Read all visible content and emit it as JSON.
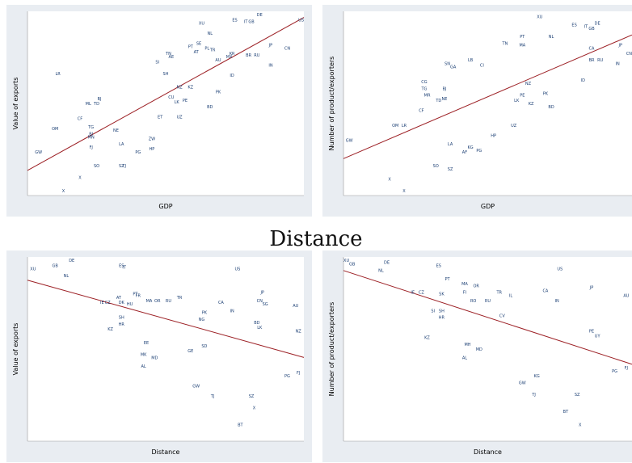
{
  "section_title": "Distance",
  "colors": {
    "points": "#1a3e73",
    "fit_line": "#9c1f24",
    "panel_bg": "#e9edf2",
    "plot_bg": "#ffffff"
  },
  "chart_data": [
    {
      "type": "scatter",
      "xlabel": "GDP",
      "ylabel": "Value of exports",
      "fit_line": true,
      "points": [
        {
          "label": "US",
          "x": 0.99,
          "y": 0.96
        },
        {
          "label": "CN",
          "x": 0.94,
          "y": 0.79
        },
        {
          "label": "JP",
          "x": 0.88,
          "y": 0.81
        },
        {
          "label": "DE",
          "x": 0.84,
          "y": 0.99
        },
        {
          "label": "ES",
          "x": 0.75,
          "y": 0.96
        },
        {
          "label": "IT",
          "x": 0.79,
          "y": 0.95
        },
        {
          "label": "GB",
          "x": 0.81,
          "y": 0.95
        },
        {
          "label": "XU",
          "x": 0.63,
          "y": 0.94
        },
        {
          "label": "NL",
          "x": 0.66,
          "y": 0.88
        },
        {
          "label": "BR",
          "x": 0.8,
          "y": 0.75
        },
        {
          "label": "RU",
          "x": 0.83,
          "y": 0.75
        },
        {
          "label": "MX",
          "x": 0.73,
          "y": 0.74
        },
        {
          "label": "KR",
          "x": 0.74,
          "y": 0.76
        },
        {
          "label": "IN",
          "x": 0.88,
          "y": 0.69
        },
        {
          "label": "ID",
          "x": 0.74,
          "y": 0.63
        },
        {
          "label": "TR",
          "x": 0.67,
          "y": 0.78
        },
        {
          "label": "AU",
          "x": 0.69,
          "y": 0.72
        },
        {
          "label": "PL",
          "x": 0.65,
          "y": 0.79
        },
        {
          "label": "AT",
          "x": 0.61,
          "y": 0.77
        },
        {
          "label": "PT",
          "x": 0.59,
          "y": 0.8
        },
        {
          "label": "SE",
          "x": 0.62,
          "y": 0.82
        },
        {
          "label": "TN",
          "x": 0.51,
          "y": 0.76
        },
        {
          "label": "AE",
          "x": 0.52,
          "y": 0.74
        },
        {
          "label": "SI",
          "x": 0.47,
          "y": 0.71
        },
        {
          "label": "LR",
          "x": 0.11,
          "y": 0.64
        },
        {
          "label": "SH",
          "x": 0.5,
          "y": 0.64
        },
        {
          "label": "NZ",
          "x": 0.55,
          "y": 0.56
        },
        {
          "label": "KZ",
          "x": 0.59,
          "y": 0.56
        },
        {
          "label": "PK",
          "x": 0.69,
          "y": 0.53
        },
        {
          "label": "PE",
          "x": 0.57,
          "y": 0.48
        },
        {
          "label": "LK",
          "x": 0.54,
          "y": 0.47
        },
        {
          "label": "BD",
          "x": 0.66,
          "y": 0.44
        },
        {
          "label": "UZ",
          "x": 0.55,
          "y": 0.38
        },
        {
          "label": "CU",
          "x": 0.52,
          "y": 0.5
        },
        {
          "label": "ET",
          "x": 0.48,
          "y": 0.38
        },
        {
          "label": "BJ",
          "x": 0.26,
          "y": 0.49
        },
        {
          "label": "TD",
          "x": 0.25,
          "y": 0.46
        },
        {
          "label": "ML",
          "x": 0.22,
          "y": 0.46
        },
        {
          "label": "CF",
          "x": 0.19,
          "y": 0.37
        },
        {
          "label": "OM",
          "x": 0.1,
          "y": 0.31
        },
        {
          "label": "TG",
          "x": 0.23,
          "y": 0.32
        },
        {
          "label": "BI",
          "x": 0.23,
          "y": 0.28
        },
        {
          "label": "MN",
          "x": 0.23,
          "y": 0.26
        },
        {
          "label": "FJ",
          "x": 0.23,
          "y": 0.2
        },
        {
          "label": "GW",
          "x": 0.04,
          "y": 0.17
        },
        {
          "label": "LA",
          "x": 0.34,
          "y": 0.22
        },
        {
          "label": "NE",
          "x": 0.32,
          "y": 0.3
        },
        {
          "label": "ZW",
          "x": 0.45,
          "y": 0.25
        },
        {
          "label": "HP",
          "x": 0.45,
          "y": 0.19
        },
        {
          "label": "PG",
          "x": 0.4,
          "y": 0.17
        },
        {
          "label": "SO",
          "x": 0.25,
          "y": 0.09
        },
        {
          "label": "SZ",
          "x": 0.34,
          "y": 0.09
        },
        {
          "label": "TJ",
          "x": 0.35,
          "y": 0.09
        },
        {
          "label": "X",
          "x": 0.19,
          "y": 0.02
        },
        {
          "label": "X",
          "x": 0.13,
          "y": -0.06
        }
      ]
    },
    {
      "type": "scatter",
      "xlabel": "GDP",
      "ylabel": "Number of product/exporters",
      "fit_line": true,
      "points": [
        {
          "label": "XU",
          "x": 0.68,
          "y": 0.98
        },
        {
          "label": "ES",
          "x": 0.8,
          "y": 0.93
        },
        {
          "label": "IT",
          "x": 0.84,
          "y": 0.92
        },
        {
          "label": "GB",
          "x": 0.86,
          "y": 0.91
        },
        {
          "label": "DE",
          "x": 0.88,
          "y": 0.94
        },
        {
          "label": "NL",
          "x": 0.72,
          "y": 0.86
        },
        {
          "label": "PT",
          "x": 0.62,
          "y": 0.86
        },
        {
          "label": "TN",
          "x": 0.56,
          "y": 0.82
        },
        {
          "label": "MA",
          "x": 0.62,
          "y": 0.81
        },
        {
          "label": "CA",
          "x": 0.86,
          "y": 0.79
        },
        {
          "label": "JP",
          "x": 0.96,
          "y": 0.81
        },
        {
          "label": "CN",
          "x": 0.99,
          "y": 0.76
        },
        {
          "label": "BR",
          "x": 0.86,
          "y": 0.72
        },
        {
          "label": "RU",
          "x": 0.89,
          "y": 0.72
        },
        {
          "label": "IN",
          "x": 0.95,
          "y": 0.7
        },
        {
          "label": "ID",
          "x": 0.83,
          "y": 0.6
        },
        {
          "label": "LB",
          "x": 0.44,
          "y": 0.72
        },
        {
          "label": "CI",
          "x": 0.48,
          "y": 0.69
        },
        {
          "label": "SN",
          "x": 0.36,
          "y": 0.7
        },
        {
          "label": "GA",
          "x": 0.38,
          "y": 0.68
        },
        {
          "label": "CG",
          "x": 0.28,
          "y": 0.59
        },
        {
          "label": "TG",
          "x": 0.28,
          "y": 0.55
        },
        {
          "label": "MR",
          "x": 0.29,
          "y": 0.51
        },
        {
          "label": "BJ",
          "x": 0.35,
          "y": 0.55
        },
        {
          "label": "TD",
          "x": 0.33,
          "y": 0.48
        },
        {
          "label": "NE",
          "x": 0.35,
          "y": 0.49
        },
        {
          "label": "CF",
          "x": 0.27,
          "y": 0.42
        },
        {
          "label": "OM",
          "x": 0.18,
          "y": 0.33
        },
        {
          "label": "LR",
          "x": 0.21,
          "y": 0.33
        },
        {
          "label": "GW",
          "x": 0.02,
          "y": 0.24
        },
        {
          "label": "NZ",
          "x": 0.64,
          "y": 0.58
        },
        {
          "label": "PE",
          "x": 0.62,
          "y": 0.51
        },
        {
          "label": "LK",
          "x": 0.6,
          "y": 0.48
        },
        {
          "label": "PK",
          "x": 0.7,
          "y": 0.52
        },
        {
          "label": "BD",
          "x": 0.72,
          "y": 0.44
        },
        {
          "label": "KZ",
          "x": 0.65,
          "y": 0.46
        },
        {
          "label": "UZ",
          "x": 0.59,
          "y": 0.33
        },
        {
          "label": "HP",
          "x": 0.52,
          "y": 0.27
        },
        {
          "label": "KG",
          "x": 0.44,
          "y": 0.2
        },
        {
          "label": "PG",
          "x": 0.47,
          "y": 0.18
        },
        {
          "label": "AF",
          "x": 0.42,
          "y": 0.17
        },
        {
          "label": "LA",
          "x": 0.37,
          "y": 0.22
        },
        {
          "label": "SO",
          "x": 0.32,
          "y": 0.09
        },
        {
          "label": "SZ",
          "x": 0.37,
          "y": 0.07
        },
        {
          "label": "X",
          "x": 0.16,
          "y": 0.01
        },
        {
          "label": "X",
          "x": 0.21,
          "y": -0.06
        }
      ]
    },
    {
      "type": "scatter",
      "xlabel": "Distance",
      "ylabel": "Value of exports",
      "fit_line": true,
      "points": [
        {
          "label": "DE",
          "x": 0.16,
          "y": 0.99
        },
        {
          "label": "GB",
          "x": 0.1,
          "y": 0.96
        },
        {
          "label": "XU",
          "x": 0.02,
          "y": 0.94
        },
        {
          "label": "ES",
          "x": 0.34,
          "y": 0.96
        },
        {
          "label": "IT",
          "x": 0.35,
          "y": 0.95
        },
        {
          "label": "NL",
          "x": 0.14,
          "y": 0.9
        },
        {
          "label": "US",
          "x": 0.76,
          "y": 0.94
        },
        {
          "label": "PT",
          "x": 0.39,
          "y": 0.79
        },
        {
          "label": "FR",
          "x": 0.4,
          "y": 0.78
        },
        {
          "label": "MA",
          "x": 0.44,
          "y": 0.75
        },
        {
          "label": "OR",
          "x": 0.47,
          "y": 0.75
        },
        {
          "label": "RU",
          "x": 0.51,
          "y": 0.75
        },
        {
          "label": "TR",
          "x": 0.55,
          "y": 0.77
        },
        {
          "label": "IE",
          "x": 0.27,
          "y": 0.74
        },
        {
          "label": "CZ",
          "x": 0.29,
          "y": 0.74
        },
        {
          "label": "AT",
          "x": 0.33,
          "y": 0.77
        },
        {
          "label": "DK",
          "x": 0.34,
          "y": 0.74
        },
        {
          "label": "HU",
          "x": 0.37,
          "y": 0.73
        },
        {
          "label": "SH",
          "x": 0.34,
          "y": 0.65
        },
        {
          "label": "HR",
          "x": 0.34,
          "y": 0.61
        },
        {
          "label": "KZ",
          "x": 0.3,
          "y": 0.58
        },
        {
          "label": "CA",
          "x": 0.7,
          "y": 0.74
        },
        {
          "label": "AU",
          "x": 0.97,
          "y": 0.72
        },
        {
          "label": "NZ",
          "x": 0.98,
          "y": 0.57
        },
        {
          "label": "IN",
          "x": 0.74,
          "y": 0.69
        },
        {
          "label": "PK",
          "x": 0.64,
          "y": 0.68
        },
        {
          "label": "BD",
          "x": 0.83,
          "y": 0.62
        },
        {
          "label": "LK",
          "x": 0.84,
          "y": 0.59
        },
        {
          "label": "CN",
          "x": 0.84,
          "y": 0.75
        },
        {
          "label": "JP",
          "x": 0.85,
          "y": 0.8
        },
        {
          "label": "SG",
          "x": 0.86,
          "y": 0.73
        },
        {
          "label": "NG",
          "x": 0.63,
          "y": 0.64
        },
        {
          "label": "GE",
          "x": 0.59,
          "y": 0.45
        },
        {
          "label": "EE",
          "x": 0.43,
          "y": 0.5
        },
        {
          "label": "MK",
          "x": 0.42,
          "y": 0.43
        },
        {
          "label": "AL",
          "x": 0.42,
          "y": 0.36
        },
        {
          "label": "MD",
          "x": 0.46,
          "y": 0.41
        },
        {
          "label": "SD",
          "x": 0.64,
          "y": 0.48
        },
        {
          "label": "GW",
          "x": 0.61,
          "y": 0.24
        },
        {
          "label": "TJ",
          "x": 0.67,
          "y": 0.18
        },
        {
          "label": "SZ",
          "x": 0.81,
          "y": 0.18
        },
        {
          "label": "PG",
          "x": 0.94,
          "y": 0.3
        },
        {
          "label": "FJ",
          "x": 0.98,
          "y": 0.32
        },
        {
          "label": "X",
          "x": 0.82,
          "y": 0.11
        },
        {
          "label": "BT",
          "x": 0.77,
          "y": 0.01
        }
      ]
    },
    {
      "type": "scatter",
      "xlabel": "Distance",
      "ylabel": "Number of product/exporters",
      "fit_line": true,
      "points": [
        {
          "label": "XU",
          "x": 0.01,
          "y": 0.99
        },
        {
          "label": "GB",
          "x": 0.03,
          "y": 0.97
        },
        {
          "label": "DE",
          "x": 0.15,
          "y": 0.98
        },
        {
          "label": "ES",
          "x": 0.33,
          "y": 0.96
        },
        {
          "label": "NL",
          "x": 0.13,
          "y": 0.93
        },
        {
          "label": "US",
          "x": 0.75,
          "y": 0.94
        },
        {
          "label": "PT",
          "x": 0.36,
          "y": 0.88
        },
        {
          "label": "MA",
          "x": 0.42,
          "y": 0.85
        },
        {
          "label": "OR",
          "x": 0.46,
          "y": 0.84
        },
        {
          "label": "FI",
          "x": 0.42,
          "y": 0.8
        },
        {
          "label": "CZ",
          "x": 0.27,
          "y": 0.8
        },
        {
          "label": "IE",
          "x": 0.24,
          "y": 0.8
        },
        {
          "label": "SK",
          "x": 0.34,
          "y": 0.79
        },
        {
          "label": "RO",
          "x": 0.45,
          "y": 0.75
        },
        {
          "label": "RU",
          "x": 0.5,
          "y": 0.75
        },
        {
          "label": "TR",
          "x": 0.54,
          "y": 0.8
        },
        {
          "label": "IL",
          "x": 0.58,
          "y": 0.78
        },
        {
          "label": "CA",
          "x": 0.7,
          "y": 0.81
        },
        {
          "label": "JP",
          "x": 0.86,
          "y": 0.83
        },
        {
          "label": "AU",
          "x": 0.98,
          "y": 0.78
        },
        {
          "label": "SI",
          "x": 0.31,
          "y": 0.69
        },
        {
          "label": "SH",
          "x": 0.34,
          "y": 0.69
        },
        {
          "label": "HR",
          "x": 0.34,
          "y": 0.65
        },
        {
          "label": "KZ",
          "x": 0.29,
          "y": 0.53
        },
        {
          "label": "IN",
          "x": 0.74,
          "y": 0.75
        },
        {
          "label": "CV",
          "x": 0.55,
          "y": 0.66
        },
        {
          "label": "MH",
          "x": 0.43,
          "y": 0.49
        },
        {
          "label": "MD",
          "x": 0.47,
          "y": 0.46
        },
        {
          "label": "AL",
          "x": 0.42,
          "y": 0.41
        },
        {
          "label": "PE",
          "x": 0.86,
          "y": 0.57
        },
        {
          "label": "UY",
          "x": 0.88,
          "y": 0.54
        },
        {
          "label": "GW",
          "x": 0.62,
          "y": 0.26
        },
        {
          "label": "TJ",
          "x": 0.66,
          "y": 0.19
        },
        {
          "label": "SZ",
          "x": 0.81,
          "y": 0.19
        },
        {
          "label": "BT",
          "x": 0.77,
          "y": 0.09
        },
        {
          "label": "X",
          "x": 0.82,
          "y": 0.01
        },
        {
          "label": "PG",
          "x": 0.94,
          "y": 0.33
        },
        {
          "label": "FJ",
          "x": 0.98,
          "y": 0.35
        },
        {
          "label": "KG",
          "x": 0.67,
          "y": 0.3
        }
      ]
    }
  ]
}
